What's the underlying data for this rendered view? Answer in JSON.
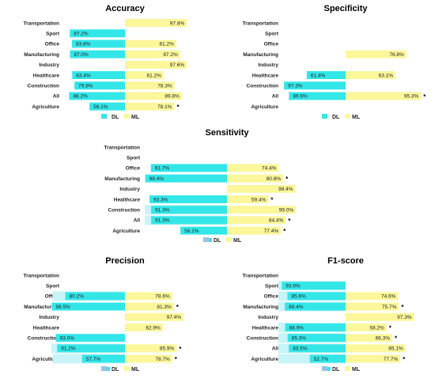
{
  "chart_data": [
    {
      "type": "bar",
      "title": "Accuracy",
      "categories": [
        "Transportation",
        "Sport",
        "Office",
        "Manufacturing",
        "Industry",
        "Healthcare",
        "Construction",
        "All",
        "Agriculture"
      ],
      "series": [
        {
          "name": "DL",
          "values": [
            null,
            87.2,
            83.8,
            87.0,
            null,
            83.4,
            79.8,
            88.2,
            56.1
          ],
          "labels": [
            "",
            "87.2%",
            "83.8%",
            "87.0%",
            "",
            "83.4%",
            "79.8%",
            "88.2%",
            "56.1%"
          ]
        },
        {
          "name": "ML",
          "values": [
            97.8,
            null,
            81.2,
            87.2,
            97.6,
            61.2,
            78.3,
            89.8,
            78.1
          ],
          "labels": [
            "97.8%",
            "",
            "81.2%",
            "87.2%",
            "97.6%",
            "61.2%",
            "78.3%",
            "89.8%",
            "78.1%"
          ]
        }
      ],
      "dl_shadow": [
        null,
        null,
        null,
        null,
        null,
        null,
        null,
        null,
        null
      ],
      "significant": [
        false,
        false,
        false,
        false,
        false,
        false,
        false,
        false,
        true
      ],
      "star": "*",
      "xlim": [
        0,
        100
      ],
      "legend": "bottom"
    },
    {
      "type": "bar",
      "title": "Specificity",
      "categories": [
        "Transportation",
        "Sport",
        "Office",
        "Manufacturing",
        "Industry",
        "Healthcare",
        "Construction",
        "All",
        "Agriculture"
      ],
      "series": [
        {
          "name": "DL",
          "values": [
            null,
            null,
            null,
            null,
            null,
            61.4,
            97.3,
            89.6,
            null
          ],
          "labels": [
            "",
            "",
            "",
            "",
            "",
            "61.4%",
            "97.3%",
            "89.6%",
            ""
          ]
        },
        {
          "name": "ML",
          "values": [
            null,
            null,
            null,
            76.8,
            null,
            63.1,
            null,
            95.3,
            null
          ],
          "labels": [
            "",
            "",
            "",
            "76.8%",
            "",
            "63.1%",
            "",
            "95.3%",
            ""
          ]
        }
      ],
      "dl_shadow": [
        null,
        null,
        null,
        null,
        null,
        null,
        null,
        null,
        null
      ],
      "significant": [
        false,
        false,
        false,
        false,
        false,
        false,
        false,
        true,
        false
      ],
      "star": "*",
      "xlim": [
        0,
        100
      ],
      "legend": "bottom"
    },
    {
      "type": "bar",
      "title": "Sensitivity",
      "categories": [
        "Transportation",
        "Sport",
        "Office",
        "Manufacturing",
        "Industry",
        "Healthcare",
        "Construction",
        "All",
        "Agriculture"
      ],
      "series": [
        {
          "name": "DL",
          "values": [
            null,
            null,
            91.7,
            98.4,
            null,
            93.3,
            91.3,
            91.3,
            56.1
          ],
          "labels": [
            "",
            "",
            "91.7%",
            "98.4%",
            "",
            "93.3%",
            "91.3%",
            "91.3%",
            "56.1%"
          ]
        },
        {
          "name": "ML",
          "values": [
            null,
            null,
            74.4,
            80.8,
            98.4,
            59.4,
            99.0,
            84.4,
            77.4
          ],
          "labels": [
            "",
            "",
            "74.4%",
            "80.8%",
            "98.4%",
            "59.4%",
            "99.0%",
            "84.4%",
            "77.4%"
          ]
        }
      ],
      "dl_shadow": [
        null,
        null,
        null,
        null,
        null,
        null,
        99.0,
        99.0,
        null
      ],
      "significant": [
        false,
        false,
        false,
        true,
        false,
        true,
        false,
        true,
        true
      ],
      "star": "*",
      "xlim": [
        0,
        100
      ],
      "legend": "bottom"
    },
    {
      "type": "bar",
      "title": "Precision",
      "categories": [
        "Transportation",
        "Sport",
        "Office",
        "Manufacturing",
        "Industry",
        "Healthcare",
        "Construction",
        "All",
        "Agriculture"
      ],
      "series": [
        {
          "name": "DL",
          "values": [
            null,
            null,
            80.2,
            98.5,
            null,
            null,
            93.0,
            91.2,
            57.7
          ],
          "labels": [
            "",
            "",
            "80.2%",
            "98.5%",
            "",
            "",
            "93.0%",
            "91.2%",
            "57.7%"
          ]
        },
        {
          "name": "ML",
          "values": [
            null,
            null,
            78.6,
            81.3,
            97.4,
            62.9,
            null,
            85.9,
            78.7
          ],
          "labels": [
            "",
            "",
            "78.6%",
            "81.3%",
            "97.4%",
            "62.9%",
            "",
            "85.9%",
            "78.7%"
          ]
        }
      ],
      "dl_shadow": [
        null,
        null,
        97.0,
        null,
        null,
        null,
        null,
        99.0,
        97.0
      ],
      "significant": [
        false,
        false,
        false,
        true,
        false,
        false,
        false,
        true,
        true
      ],
      "star": "*",
      "xlim": [
        0,
        100
      ],
      "legend": "bottom"
    },
    {
      "type": "bar",
      "title": "F1-score",
      "categories": [
        "Transportation",
        "Sport",
        "Office",
        "Manufacturing",
        "Industry",
        "Healthcare",
        "Construction",
        "All",
        "Agriculture"
      ],
      "series": [
        {
          "name": "DL",
          "values": [
            null,
            93.9,
            85.6,
            89.4,
            null,
            88.9,
            85.3,
            83.5,
            52.7
          ],
          "labels": [
            "",
            "93.9%",
            "85.6%",
            "89.4%",
            "",
            "88.9%",
            "85.3%",
            "83.5%",
            "52.7%"
          ]
        },
        {
          "name": "ML",
          "values": [
            null,
            null,
            74.6,
            75.7,
            97.3,
            58.2,
            66.3,
            85.1,
            77.7
          ],
          "labels": [
            "",
            "",
            "74.6%",
            "75.7%",
            "97.3%",
            "58.2%",
            "66.3%",
            "85.1%",
            "77.7%"
          ]
        }
      ],
      "dl_shadow": [
        null,
        99.0,
        99.0,
        99.0,
        null,
        99.0,
        99.0,
        99.0,
        99.0
      ],
      "significant": [
        false,
        false,
        false,
        true,
        false,
        true,
        true,
        false,
        true
      ],
      "star": "*",
      "xlim": [
        0,
        100
      ],
      "legend": "bottom"
    }
  ],
  "colors": {
    "dl": "#33e6e8",
    "dl_shadow": "#c6f4f7",
    "ml": "#fbf79a",
    "legend_dl_box": "#9cc2e6",
    "legend_dl_bar": "#33e6e8",
    "legend_ml_box": "#fbf79a"
  }
}
